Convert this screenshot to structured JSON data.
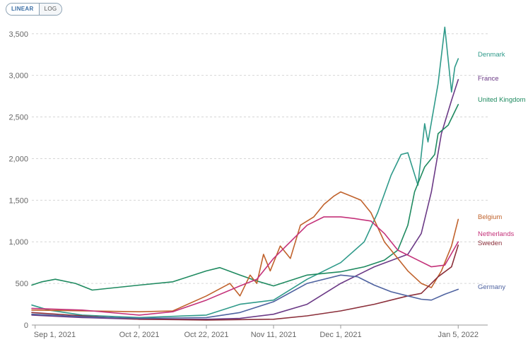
{
  "toggle": {
    "linear_label": "LINEAR",
    "log_label": "LOG",
    "selected": "LINEAR"
  },
  "chart_data": {
    "type": "line",
    "title": "",
    "xlabel": "",
    "ylabel": "",
    "scale": "linear",
    "grid": true,
    "legend": "inline-right",
    "xlim": [
      "2021-08-31",
      "2022-01-10"
    ],
    "ylim": [
      0,
      3600
    ],
    "y_ticks": [
      0,
      500,
      1000,
      1500,
      2000,
      2500,
      3000,
      3500
    ],
    "y_tick_labels": [
      "0",
      "500",
      "1,000",
      "1,500",
      "2,000",
      "2,500",
      "3,000",
      "3,500"
    ],
    "x_ticks": [
      "2021-09-01",
      "2021-10-02",
      "2021-10-22",
      "2021-11-11",
      "2021-12-01",
      "2022-01-05"
    ],
    "x_tick_labels": [
      "Sep 1, 2021",
      "Oct 2, 2021",
      "Oct 22, 2021",
      "Nov 11, 2021",
      "Dec 1, 2021",
      "Jan 5, 2022"
    ],
    "series": [
      {
        "name": "Denmark",
        "color": "#2f9a8a",
        "points": [
          [
            "2021-08-31",
            240
          ],
          [
            "2021-09-05",
            180
          ],
          [
            "2021-09-15",
            120
          ],
          [
            "2021-10-02",
            90
          ],
          [
            "2021-10-22",
            120
          ],
          [
            "2021-11-01",
            250
          ],
          [
            "2021-11-11",
            300
          ],
          [
            "2021-11-21",
            550
          ],
          [
            "2021-12-01",
            750
          ],
          [
            "2021-12-08",
            1000
          ],
          [
            "2021-12-12",
            1350
          ],
          [
            "2021-12-16",
            1800
          ],
          [
            "2021-12-19",
            2050
          ],
          [
            "2021-12-21",
            2070
          ],
          [
            "2021-12-24",
            1680
          ],
          [
            "2021-12-26",
            2420
          ],
          [
            "2021-12-27",
            2200
          ],
          [
            "2021-12-30",
            2900
          ],
          [
            "2022-01-01",
            3580
          ],
          [
            "2022-01-03",
            2800
          ],
          [
            "2022-01-04",
            3100
          ],
          [
            "2022-01-05",
            3200
          ]
        ]
      },
      {
        "name": "France",
        "color": "#6b3a86",
        "points": [
          [
            "2021-08-31",
            120
          ],
          [
            "2021-09-15",
            90
          ],
          [
            "2021-10-02",
            70
          ],
          [
            "2021-10-22",
            70
          ],
          [
            "2021-11-01",
            80
          ],
          [
            "2021-11-11",
            130
          ],
          [
            "2021-11-21",
            250
          ],
          [
            "2021-12-01",
            500
          ],
          [
            "2021-12-11",
            700
          ],
          [
            "2021-12-21",
            850
          ],
          [
            "2021-12-25",
            1100
          ],
          [
            "2021-12-28",
            1600
          ],
          [
            "2021-12-31",
            2300
          ],
          [
            "2022-01-03",
            2700
          ],
          [
            "2022-01-05",
            2950
          ]
        ]
      },
      {
        "name": "United Kingdom",
        "color": "#1f8a60",
        "points": [
          [
            "2021-08-31",
            480
          ],
          [
            "2021-09-03",
            520
          ],
          [
            "2021-09-07",
            550
          ],
          [
            "2021-09-13",
            500
          ],
          [
            "2021-09-18",
            420
          ],
          [
            "2021-09-25",
            450
          ],
          [
            "2021-10-02",
            480
          ],
          [
            "2021-10-12",
            520
          ],
          [
            "2021-10-22",
            650
          ],
          [
            "2021-10-26",
            690
          ],
          [
            "2021-11-01",
            600
          ],
          [
            "2021-11-06",
            530
          ],
          [
            "2021-11-11",
            470
          ],
          [
            "2021-11-21",
            600
          ],
          [
            "2021-12-01",
            640
          ],
          [
            "2021-12-08",
            700
          ],
          [
            "2021-12-14",
            780
          ],
          [
            "2021-12-18",
            900
          ],
          [
            "2021-12-21",
            1200
          ],
          [
            "2021-12-23",
            1600
          ],
          [
            "2021-12-26",
            1900
          ],
          [
            "2021-12-29",
            2050
          ],
          [
            "2021-12-30",
            2300
          ],
          [
            "2022-01-02",
            2400
          ],
          [
            "2022-01-05",
            2650
          ]
        ]
      },
      {
        "name": "Belgium",
        "color": "#c0622c",
        "points": [
          [
            "2021-08-31",
            180
          ],
          [
            "2021-10-02",
            160
          ],
          [
            "2021-10-12",
            170
          ],
          [
            "2021-10-22",
            350
          ],
          [
            "2021-10-29",
            500
          ],
          [
            "2021-11-01",
            350
          ],
          [
            "2021-11-04",
            600
          ],
          [
            "2021-11-06",
            500
          ],
          [
            "2021-11-08",
            850
          ],
          [
            "2021-11-10",
            650
          ],
          [
            "2021-11-13",
            950
          ],
          [
            "2021-11-16",
            800
          ],
          [
            "2021-11-19",
            1200
          ],
          [
            "2021-11-23",
            1300
          ],
          [
            "2021-11-26",
            1450
          ],
          [
            "2021-11-29",
            1550
          ],
          [
            "2021-12-01",
            1600
          ],
          [
            "2021-12-04",
            1550
          ],
          [
            "2021-12-07",
            1500
          ],
          [
            "2021-12-10",
            1350
          ],
          [
            "2021-12-14",
            1000
          ],
          [
            "2021-12-18",
            800
          ],
          [
            "2021-12-21",
            650
          ],
          [
            "2021-12-25",
            500
          ],
          [
            "2021-12-28",
            450
          ],
          [
            "2021-12-31",
            650
          ],
          [
            "2022-01-03",
            950
          ],
          [
            "2022-01-05",
            1270
          ]
        ]
      },
      {
        "name": "Netherlands",
        "color": "#c4327a",
        "points": [
          [
            "2021-08-31",
            200
          ],
          [
            "2021-09-15",
            180
          ],
          [
            "2021-10-02",
            120
          ],
          [
            "2021-10-12",
            160
          ],
          [
            "2021-10-22",
            300
          ],
          [
            "2021-11-01",
            470
          ],
          [
            "2021-11-06",
            550
          ],
          [
            "2021-11-11",
            800
          ],
          [
            "2021-11-16",
            1000
          ],
          [
            "2021-11-21",
            1200
          ],
          [
            "2021-11-26",
            1300
          ],
          [
            "2021-12-01",
            1300
          ],
          [
            "2021-12-05",
            1280
          ],
          [
            "2021-12-10",
            1250
          ],
          [
            "2021-12-14",
            1100
          ],
          [
            "2021-12-18",
            900
          ],
          [
            "2021-12-23",
            800
          ],
          [
            "2021-12-28",
            700
          ],
          [
            "2022-01-01",
            720
          ],
          [
            "2022-01-05",
            1000
          ]
        ]
      },
      {
        "name": "Sweden",
        "color": "#8b2f3a",
        "points": [
          [
            "2021-08-31",
            150
          ],
          [
            "2021-09-15",
            110
          ],
          [
            "2021-10-02",
            70
          ],
          [
            "2021-10-22",
            60
          ],
          [
            "2021-11-11",
            70
          ],
          [
            "2021-11-21",
            110
          ],
          [
            "2021-12-01",
            170
          ],
          [
            "2021-12-11",
            250
          ],
          [
            "2021-12-18",
            320
          ],
          [
            "2021-12-21",
            350
          ],
          [
            "2021-12-25",
            380
          ],
          [
            "2021-12-30",
            580
          ],
          [
            "2022-01-03",
            700
          ],
          [
            "2022-01-05",
            960
          ]
        ]
      },
      {
        "name": "Germany",
        "color": "#4f63a0",
        "points": [
          [
            "2021-08-31",
            130
          ],
          [
            "2021-09-15",
            100
          ],
          [
            "2021-10-02",
            80
          ],
          [
            "2021-10-22",
            90
          ],
          [
            "2021-11-01",
            150
          ],
          [
            "2021-11-11",
            280
          ],
          [
            "2021-11-21",
            500
          ],
          [
            "2021-12-01",
            600
          ],
          [
            "2021-12-06",
            580
          ],
          [
            "2021-12-11",
            480
          ],
          [
            "2021-12-16",
            400
          ],
          [
            "2021-12-21",
            350
          ],
          [
            "2021-12-25",
            310
          ],
          [
            "2021-12-28",
            300
          ],
          [
            "2022-01-01",
            370
          ],
          [
            "2022-01-05",
            430
          ]
        ]
      }
    ]
  }
}
